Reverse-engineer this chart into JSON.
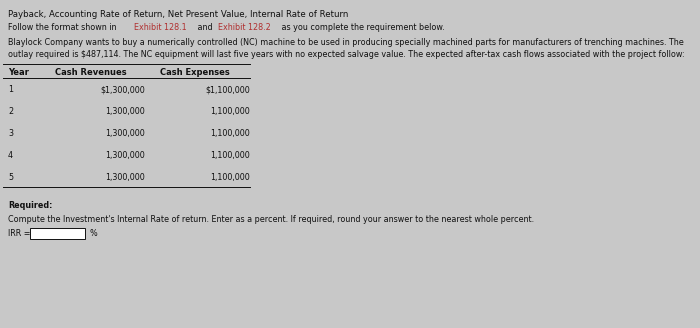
{
  "title": "Payback, Accounting Rate of Return, Net Present Value, Internal Rate of Return",
  "seg1": "Follow the format shown in ",
  "seg2": "Exhibit 128.1",
  "seg3": " and ",
  "seg4": "Exhibit 128.2",
  "seg5": " as you complete the requirement below.",
  "body_line1": "Blaylock Company wants to buy a numerically controlled (NC) machine to be used in producing specially machined parts for manufacturers of trenching machines. The",
  "body_line2": "outlay required is $487,114. The NC equipment will last five years with no expected salvage value. The expected after-tax cash flows associated with the project follow:",
  "table_headers": [
    "Year",
    "Cash Revenues",
    "Cash Expenses"
  ],
  "table_data": [
    [
      "1",
      "$1,300,000",
      "$1,100,000"
    ],
    [
      "2",
      "1,300,000",
      "1,100,000"
    ],
    [
      "3",
      "1,300,000",
      "1,100,000"
    ],
    [
      "4",
      "1,300,000",
      "1,100,000"
    ],
    [
      "5",
      "1,300,000",
      "1,100,000"
    ]
  ],
  "required_label": "Required:",
  "question_text": "Compute the Investment's Internal Rate of return. Enter as a percent. If required, round your answer to the nearest whole percent.",
  "irr_label": "IRR =",
  "irr_suffix": "%",
  "bg_color": "#c8c8c8",
  "text_color": "#111111",
  "link_color": "#b03030",
  "box_fill": "#ffffff",
  "title_fontsize": 6.2,
  "body_fontsize": 5.8,
  "table_header_fontsize": 6.0,
  "table_fontsize": 5.8
}
